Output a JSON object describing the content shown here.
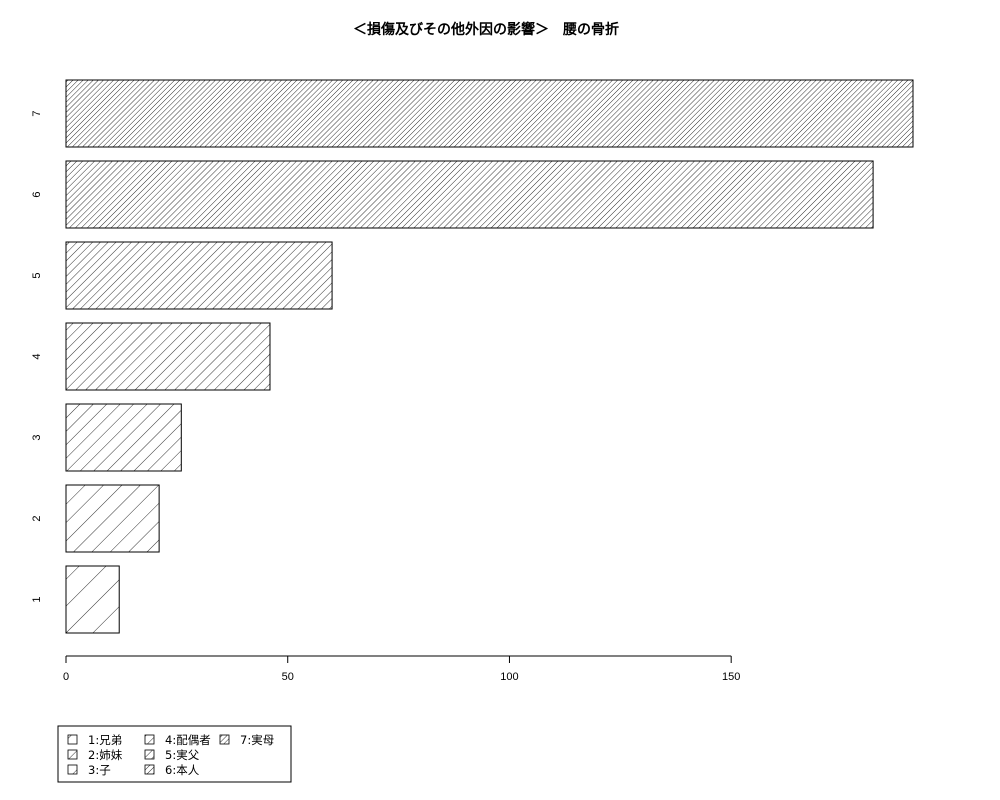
{
  "chart_data": {
    "type": "bar",
    "orientation": "horizontal",
    "title": "＜損傷及びその他外因の影響＞　腰の骨折",
    "categories": [
      "1",
      "2",
      "3",
      "4",
      "5",
      "6",
      "7"
    ],
    "values": [
      12,
      21,
      26,
      46,
      60,
      182,
      191
    ],
    "xlim": [
      0,
      191
    ],
    "x_ticks": [
      0,
      50,
      100,
      150
    ],
    "xlabel": "",
    "ylabel": "",
    "grid": false,
    "fill": "diagonal hatching, density increasing with category",
    "legend": {
      "placement": "bottom-left",
      "entries": [
        "1:兄弟",
        "2:姉妹",
        "3:子",
        "4:配偶者",
        "5:実父",
        "6:本人",
        "7:実母"
      ]
    }
  }
}
